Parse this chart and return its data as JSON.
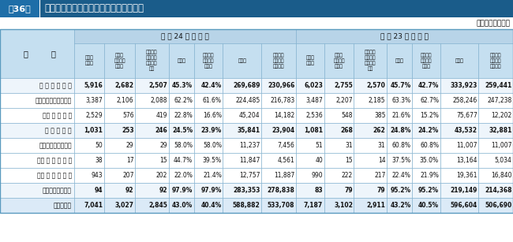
{
  "title_tag": "第36表",
  "title_text": "地方公共団体からの補助金交付額の状況",
  "unit_label": "（単位　百万円）",
  "header_h24": "平 成 24 年 度 調 査",
  "header_h23": "平 成 23 年 度 調 査",
  "col_headers": [
    "全　体\n法人数",
    "補助金\n交付該当\n法人数",
    "経常収益\nへ計上し\nている法\n人数",
    "構成比",
    "経常収益\n計上法人\n構成比",
    "交付額",
    "経常収益\nへ計上し\nている額",
    "全　体\n法人数",
    "補助金\n交付該当\n法人数",
    "経常収益\nへ計上し\nている法\n人数",
    "構成比",
    "経常収益\n計上法人\n構成比",
    "交付額",
    "経常収益\nへ計上し\nている額"
  ],
  "row_labels": [
    "第 三 セ ク タ ー",
    "社団法人・財団法人",
    "会 社 法 法 人",
    "地 方 三 公 社",
    "地方住宅供給公社",
    "地 方 道 路 公 社",
    "土 地 開 発 公 社",
    "地方独立行政法人",
    "総　　　計"
  ],
  "row_indent": [
    false,
    true,
    true,
    false,
    true,
    true,
    true,
    false,
    false
  ],
  "row_bold": [
    true,
    false,
    false,
    true,
    false,
    false,
    false,
    true,
    true
  ],
  "rows": [
    [
      "5,916",
      "2,682",
      "2,507",
      "45.3%",
      "42.4%",
      "269,689",
      "230,966",
      "6,023",
      "2,755",
      "2,570",
      "45.7%",
      "42.7%",
      "333,923",
      "259,441"
    ],
    [
      "3,387",
      "2,106",
      "2,088",
      "62.2%",
      "61.6%",
      "224,485",
      "216,783",
      "3,487",
      "2,207",
      "2,185",
      "63.3%",
      "62.7%",
      "258,246",
      "247,238"
    ],
    [
      "2,529",
      "576",
      "419",
      "22.8%",
      "16.6%",
      "45,204",
      "14,182",
      "2,536",
      "548",
      "385",
      "21.6%",
      "15.2%",
      "75,677",
      "12,202"
    ],
    [
      "1,031",
      "253",
      "246",
      "24.5%",
      "23.9%",
      "35,841",
      "23,904",
      "1,081",
      "268",
      "262",
      "24.8%",
      "24.2%",
      "43,532",
      "32,881"
    ],
    [
      "50",
      "29",
      "29",
      "58.0%",
      "58.0%",
      "11,237",
      "7,456",
      "51",
      "31",
      "31",
      "60.8%",
      "60.8%",
      "11,007",
      "11,007"
    ],
    [
      "38",
      "17",
      "15",
      "44.7%",
      "39.5%",
      "11,847",
      "4,561",
      "40",
      "15",
      "14",
      "37.5%",
      "35.0%",
      "13,164",
      "5,034"
    ],
    [
      "943",
      "207",
      "202",
      "22.0%",
      "21.4%",
      "12,757",
      "11,887",
      "990",
      "222",
      "217",
      "22.4%",
      "21.9%",
      "19,361",
      "16,840"
    ],
    [
      "94",
      "92",
      "92",
      "97.9%",
      "97.9%",
      "283,353",
      "278,838",
      "83",
      "79",
      "79",
      "95.2%",
      "95.2%",
      "219,149",
      "214,368"
    ],
    [
      "7,041",
      "3,027",
      "2,845",
      "43.0%",
      "40.4%",
      "588,882",
      "533,708",
      "7,187",
      "3,102",
      "2,911",
      "43.2%",
      "40.5%",
      "596,604",
      "506,690"
    ]
  ],
  "row_bgs": [
    "#eef5fb",
    "#ffffff",
    "#ffffff",
    "#eef5fb",
    "#ffffff",
    "#ffffff",
    "#ffffff",
    "#eef5fb",
    "#dbeaf7"
  ],
  "col_header_bg": "#c5dff0",
  "year_header_bg": "#b8d4e8",
  "label_col_bg": "#c5dff0",
  "grid_color": "#7aaccc",
  "title_bar_bg": "#1a5c8a",
  "title_tag_bg": "#1e6ea8"
}
